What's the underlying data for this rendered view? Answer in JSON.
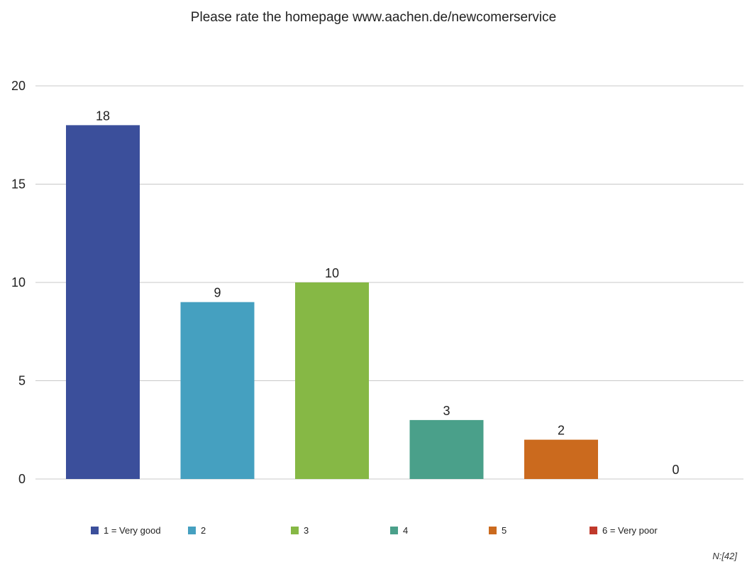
{
  "chart_data": {
    "type": "bar",
    "title": "Please rate the homepage www.aachen.de/newcomerservice",
    "categories": [
      "1 = Very good",
      "2",
      "3",
      "4",
      "5",
      "6 = Very poor"
    ],
    "values": [
      18,
      9,
      10,
      3,
      2,
      0
    ],
    "colors": [
      "#3b4f9b",
      "#45a0c0",
      "#86b845",
      "#4aa08a",
      "#cb6a1e",
      "#c0392b"
    ],
    "ylim": [
      0,
      20
    ],
    "yticks": [
      0,
      5,
      10,
      15,
      20
    ],
    "xlabel": "",
    "ylabel": "",
    "grid": true,
    "legend": "bottom",
    "note": "N:[42]"
  }
}
